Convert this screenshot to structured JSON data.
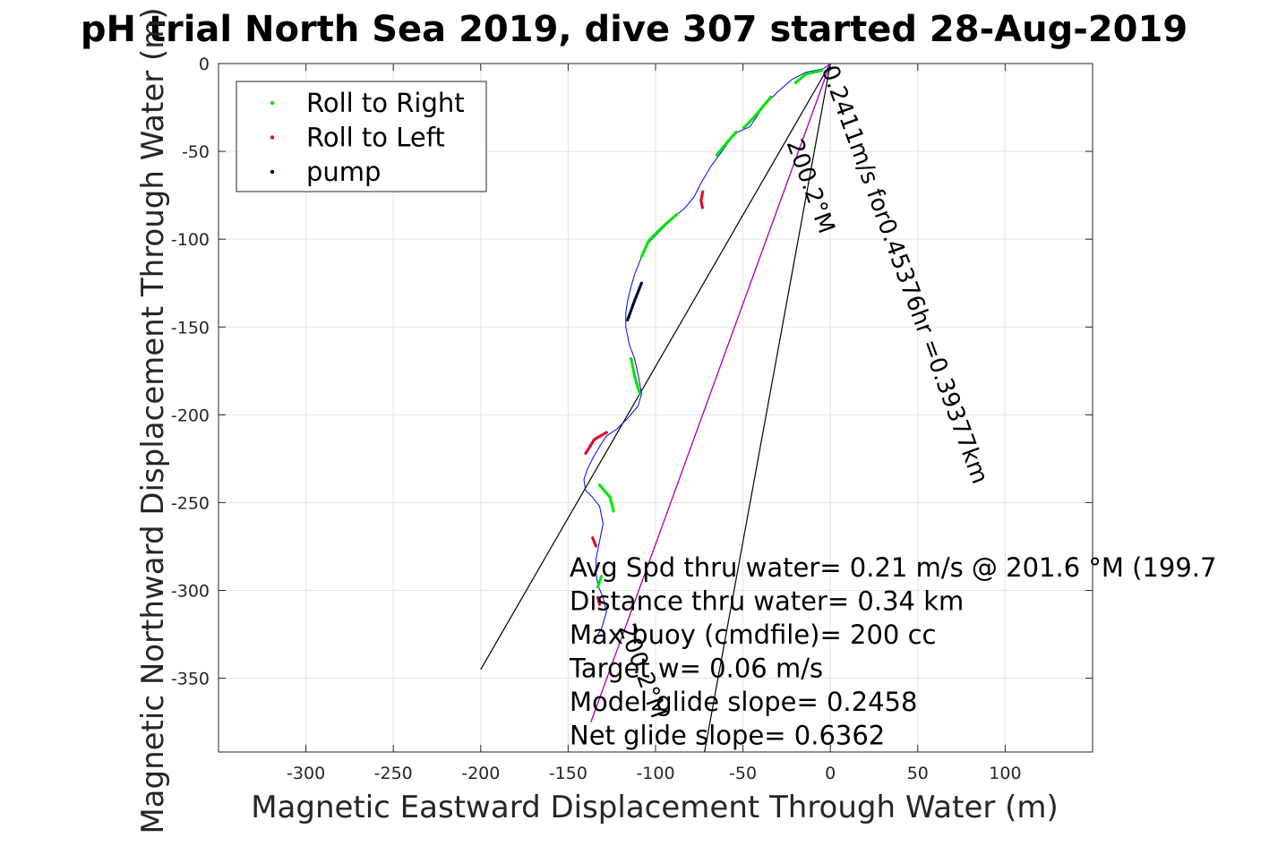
{
  "chart_data": {
    "type": "line",
    "title": "pH trial North Sea 2019, dive 307 started 28-Aug-2019",
    "xlabel": "Magnetic Eastward Displacement Through Water (m)",
    "ylabel": "Magnetic Northward Displacement Through Water (m)",
    "xlim": [
      -350,
      150
    ],
    "ylim": [
      -392,
      0
    ],
    "x_ticks": [
      -300,
      -250,
      -200,
      -150,
      -100,
      -50,
      0,
      50,
      100
    ],
    "x_tick_labels": [
      "-300",
      "-250",
      "-200",
      "-150",
      "-100",
      "-50",
      "0",
      "50",
      "100"
    ],
    "y_ticks": [
      0,
      -50,
      -100,
      -150,
      -200,
      -250,
      -300,
      -350
    ],
    "y_tick_labels": [
      "0",
      "-50",
      "-100",
      "-150",
      "-200",
      "-250",
      "-300",
      "-350"
    ],
    "grid": true,
    "legend_position": "top-left",
    "legend": [
      {
        "label": "Roll to Right",
        "color": "#00e600"
      },
      {
        "label": "Roll to Left",
        "color": "#e6002e"
      },
      {
        "label": "pump",
        "color": "#000033"
      }
    ],
    "series": [
      {
        "kind": "track",
        "color": "#0000ff",
        "x": [
          0,
          -4,
          -14,
          -22,
          -30,
          -38,
          -46,
          -53,
          -57,
          -62,
          -68,
          -74,
          -78,
          -83,
          -90,
          -98,
          -104,
          -108,
          -112,
          -114,
          -116,
          -117,
          -117,
          -115,
          -112,
          -110,
          -108,
          -110,
          -116,
          -122,
          -128,
          -132,
          -136,
          -139,
          -141,
          -140,
          -136,
          -132,
          -130,
          -132,
          -134,
          -134,
          -133,
          -130,
          -128,
          -131,
          -136
        ],
        "y": [
          0,
          -3,
          -5,
          -9,
          -16,
          -24,
          -36,
          -39,
          -43,
          -50,
          -58,
          -68,
          -76,
          -82,
          -88,
          -96,
          -102,
          -110,
          -120,
          -127,
          -135,
          -142,
          -150,
          -160,
          -168,
          -177,
          -188,
          -195,
          -202,
          -208,
          -212,
          -218,
          -225,
          -231,
          -237,
          -243,
          -247,
          -252,
          -262,
          -272,
          -282,
          -290,
          -297,
          -304,
          -312,
          -322,
          -330
        ]
      },
      {
        "kind": "segments",
        "name": "Roll to Right",
        "color": "#00e600",
        "segments": [
          {
            "x": [
              -5,
              -14,
              -20
            ],
            "y": [
              -4,
              -6,
              -11
            ]
          },
          {
            "x": [
              -34,
              -44,
              -50
            ],
            "y": [
              -19,
              -31,
              -37
            ]
          },
          {
            "x": [
              -54,
              -60,
              -65
            ],
            "y": [
              -39,
              -46,
              -52
            ]
          },
          {
            "x": [
              -88,
              -96,
              -104,
              -108
            ],
            "y": [
              -86,
              -93,
              -101,
              -110
            ]
          },
          {
            "x": [
              -114,
              -112,
              -109
            ],
            "y": [
              -168,
              -178,
              -188
            ]
          },
          {
            "x": [
              -132,
              -126,
              -124
            ],
            "y": [
              -240,
              -247,
              -255
            ]
          },
          {
            "x": [
              -131,
              -133
            ],
            "y": [
              -292,
              -298
            ]
          }
        ]
      },
      {
        "kind": "segments",
        "name": "Roll to Left",
        "color": "#e6002e",
        "segments": [
          {
            "x": [
              -73,
              -74,
              -73
            ],
            "y": [
              -73,
              -78,
              -83
            ]
          },
          {
            "x": [
              -128,
              -135,
              -140
            ],
            "y": [
              -210,
              -214,
              -222
            ]
          },
          {
            "x": [
              -136,
              -134
            ],
            "y": [
              -270,
              -275
            ]
          },
          {
            "x": [
              -133,
              -132
            ],
            "y": [
              -304,
              -308
            ]
          }
        ]
      },
      {
        "kind": "segments",
        "name": "pump",
        "color": "#000033",
        "segments": [
          {
            "x": [
              -108,
              -112,
              -116
            ],
            "y": [
              -125,
              -135,
              -146
            ]
          }
        ]
      },
      {
        "kind": "lines",
        "name": "reference lines",
        "color": "#000000",
        "lines": [
          {
            "x": [
              0,
              -200
            ],
            "y": [
              0,
              -345
            ]
          },
          {
            "x": [
              0,
              -72
            ],
            "y": [
              0,
              -392
            ]
          },
          {
            "x": [
              0,
              -137
            ],
            "y": [
              0,
              -375
            ]
          }
        ]
      },
      {
        "kind": "line",
        "name": "mean heading",
        "color": "#cc00cc",
        "x": [
          0,
          -137
        ],
        "y": [
          0,
          -375
        ]
      }
    ],
    "annotations": [
      {
        "text": "0.2411m/s for0.45376hr =0.39377km",
        "x": 0,
        "y": 0,
        "rotation": 69.9
      },
      {
        "text": "200.2°M",
        "x": -20,
        "y": -42,
        "rotation": 69.9
      },
      {
        "text": "200.2°M",
        "x": -116,
        "y": -318,
        "rotation": 69.9
      }
    ],
    "info_lines": [
      "Avg Spd thru water=  0.21 m/s @ 201.6 °M (199.7",
      "Distance thru water=  0.34 km",
      "Max buoy (cmdfile)= 200 cc",
      "Target w= 0.06 m/s",
      "Model glide slope= 0.2458",
      "Net glide slope= 0.6362"
    ]
  }
}
